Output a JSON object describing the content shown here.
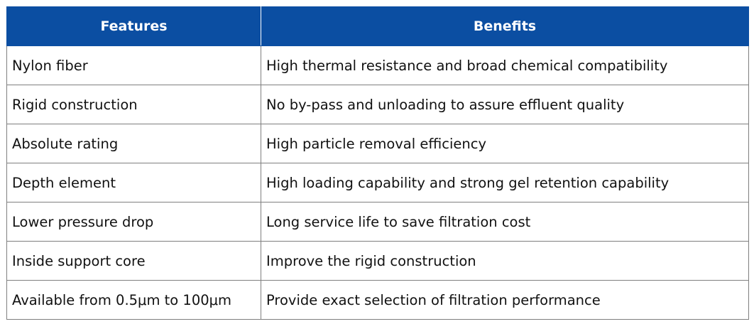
{
  "table": {
    "headers": [
      "Features",
      "Benefits"
    ],
    "rows": [
      [
        "Nylon fiber",
        "High thermal resistance and broad chemical compatibility"
      ],
      [
        "Rigid construction",
        "No by-pass and unloading to assure effluent quality"
      ],
      [
        "Absolute rating",
        "High particle removal efficiency"
      ],
      [
        "Depth element",
        "High loading capability and strong gel retention capability"
      ],
      [
        "Lower pressure drop",
        "Long service life to save filtration cost"
      ],
      [
        "Inside support core",
        "Improve the rigid construction"
      ],
      [
        "Available from 0.5μm to 100μm",
        "Provide exact selection of filtration performance"
      ]
    ]
  },
  "colors": {
    "header_bg": "#0b4ea2",
    "header_text": "#ffffff",
    "border": "#7f7f7f"
  }
}
